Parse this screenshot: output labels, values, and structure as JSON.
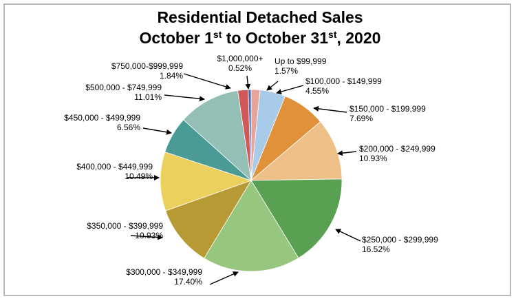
{
  "chart_data": {
    "type": "pie",
    "title_line1": "Residential Detached Sales",
    "title_line2": {
      "part1": "October 1",
      "sup1": "st",
      "part2": " to October 31",
      "sup2": "st",
      "part3": ", 2020"
    },
    "slices": [
      {
        "label": "Up to $99,999",
        "value_text": "1.57%",
        "value": 1.57,
        "color": "#e6a49b"
      },
      {
        "label": "$100,000 - $149,999",
        "value_text": "4.55%",
        "value": 4.55,
        "color": "#a7cbe9"
      },
      {
        "label": "$150,000 - $199,999",
        "value_text": "7.69%",
        "value": 7.69,
        "color": "#e0913a"
      },
      {
        "label": "$200,000 - $249,999",
        "value_text": "10.93%",
        "value": 10.93,
        "color": "#eec088"
      },
      {
        "label": "$250,000 - $299,999",
        "value_text": "16.52%",
        "value": 16.52,
        "color": "#5aa052"
      },
      {
        "label": "$300,000 - $349,999",
        "value_text": "17.40%",
        "value": 17.4,
        "color": "#97c67f"
      },
      {
        "label": "$350,000 - $399,999",
        "value_text": "10.93%",
        "value": 10.93,
        "color": "#b89a35"
      },
      {
        "label": "$400,000 - $449,999",
        "value_text": "10.49%",
        "value": 10.49,
        "color": "#ecd05d"
      },
      {
        "label": "$450,000 - $499,999",
        "value_text": "6.56%",
        "value": 6.56,
        "color": "#4a9a96"
      },
      {
        "label": "$500,000 - $749,999",
        "value_text": "11.01%",
        "value": 11.01,
        "color": "#93bfb7"
      },
      {
        "label": "$750,000-$999,999",
        "value_text": "1.84%",
        "value": 1.84,
        "color": "#d15858"
      },
      {
        "label": "$1,000,000+",
        "value_text": "0.52%",
        "value": 0.52,
        "color": "#4a6fb0"
      }
    ]
  }
}
